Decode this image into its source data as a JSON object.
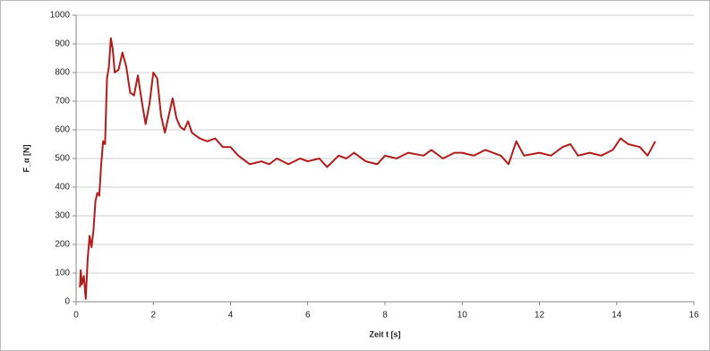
{
  "chart_data": {
    "type": "line",
    "xlabel": "Zeit t [s]",
    "ylabel": "F_α [N]",
    "xlim": [
      0,
      16
    ],
    "xticks": [
      0,
      2,
      4,
      6,
      8,
      10,
      12,
      14,
      16
    ],
    "ylim": [
      0,
      1000
    ],
    "yticks": [
      0,
      100,
      200,
      300,
      400,
      500,
      600,
      700,
      800,
      900,
      1000
    ],
    "grid": true,
    "series": [
      {
        "color": "#b31b1b",
        "x": [
          0.1,
          0.12,
          0.15,
          0.2,
          0.25,
          0.3,
          0.35,
          0.4,
          0.45,
          0.5,
          0.55,
          0.6,
          0.65,
          0.7,
          0.75,
          0.8,
          0.85,
          0.9,
          0.95,
          1.0,
          1.1,
          1.2,
          1.3,
          1.4,
          1.5,
          1.6,
          1.7,
          1.8,
          1.9,
          2.0,
          2.1,
          2.2,
          2.3,
          2.4,
          2.5,
          2.6,
          2.7,
          2.8,
          2.9,
          3.0,
          3.2,
          3.4,
          3.6,
          3.8,
          4.0,
          4.2,
          4.5,
          4.8,
          5.0,
          5.2,
          5.5,
          5.8,
          6.0,
          6.3,
          6.5,
          6.8,
          7.0,
          7.2,
          7.5,
          7.8,
          8.0,
          8.3,
          8.6,
          9.0,
          9.2,
          9.5,
          9.8,
          10.0,
          10.3,
          10.6,
          11.0,
          11.2,
          11.4,
          11.6,
          12.0,
          12.3,
          12.6,
          12.8,
          13.0,
          13.3,
          13.6,
          13.9,
          14.1,
          14.3,
          14.6,
          14.8,
          15.0
        ],
        "values": [
          50,
          110,
          60,
          90,
          10,
          150,
          230,
          190,
          250,
          350,
          380,
          370,
          480,
          560,
          550,
          780,
          820,
          920,
          880,
          800,
          810,
          870,
          820,
          730,
          720,
          790,
          700,
          620,
          690,
          800,
          780,
          650,
          590,
          650,
          710,
          640,
          610,
          600,
          630,
          590,
          570,
          560,
          570,
          540,
          540,
          510,
          480,
          490,
          480,
          500,
          480,
          500,
          490,
          500,
          470,
          510,
          500,
          520,
          490,
          480,
          510,
          500,
          520,
          510,
          530,
          500,
          520,
          520,
          510,
          530,
          510,
          480,
          560,
          510,
          520,
          510,
          540,
          550,
          510,
          520,
          510,
          530,
          570,
          550,
          540,
          510,
          560
        ]
      }
    ]
  }
}
